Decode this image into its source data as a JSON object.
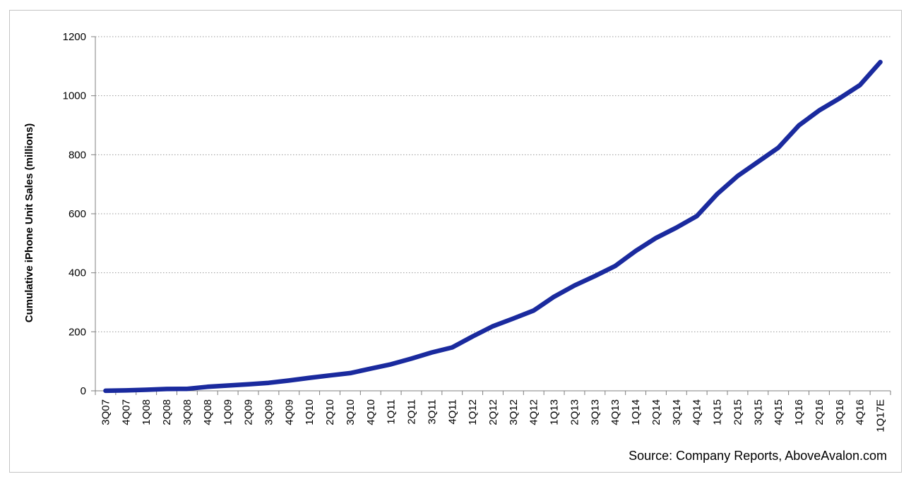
{
  "chart_data": {
    "type": "line",
    "title": "",
    "xlabel": "",
    "ylabel": "Cumulative iPhone Unit Sales  (millions)",
    "source": "Source: Company Reports, AboveAvalon.com",
    "ylim": [
      0,
      1200
    ],
    "yticks": [
      "0",
      "200",
      "400",
      "600",
      "800",
      "1000",
      "1200"
    ],
    "grid": "horizontal-dotted",
    "line_color": "#1a2a9e",
    "categories": [
      "3Q07",
      "4Q07",
      "1Q08",
      "2Q08",
      "3Q08",
      "4Q08",
      "1Q09",
      "2Q09",
      "3Q09",
      "4Q09",
      "1Q10",
      "2Q10",
      "3Q10",
      "4Q10",
      "1Q11",
      "2Q11",
      "3Q11",
      "4Q11",
      "1Q12",
      "2Q12",
      "3Q12",
      "4Q12",
      "1Q13",
      "2Q13",
      "3Q13",
      "4Q13",
      "1Q14",
      "2Q14",
      "3Q14",
      "4Q14",
      "1Q15",
      "2Q15",
      "3Q15",
      "4Q15",
      "1Q16",
      "2Q16",
      "3Q16",
      "4Q16",
      "1Q17E"
    ],
    "values": [
      0.3,
      1.4,
      3.7,
      6.1,
      6.8,
      13.7,
      18,
      22,
      27,
      35,
      44,
      52,
      60,
      75,
      90,
      109,
      130,
      147,
      184,
      219,
      245,
      272,
      319,
      357,
      389,
      423,
      474,
      518,
      553,
      592,
      667,
      728,
      776,
      824,
      899,
      950,
      991,
      1036,
      1114
    ]
  }
}
